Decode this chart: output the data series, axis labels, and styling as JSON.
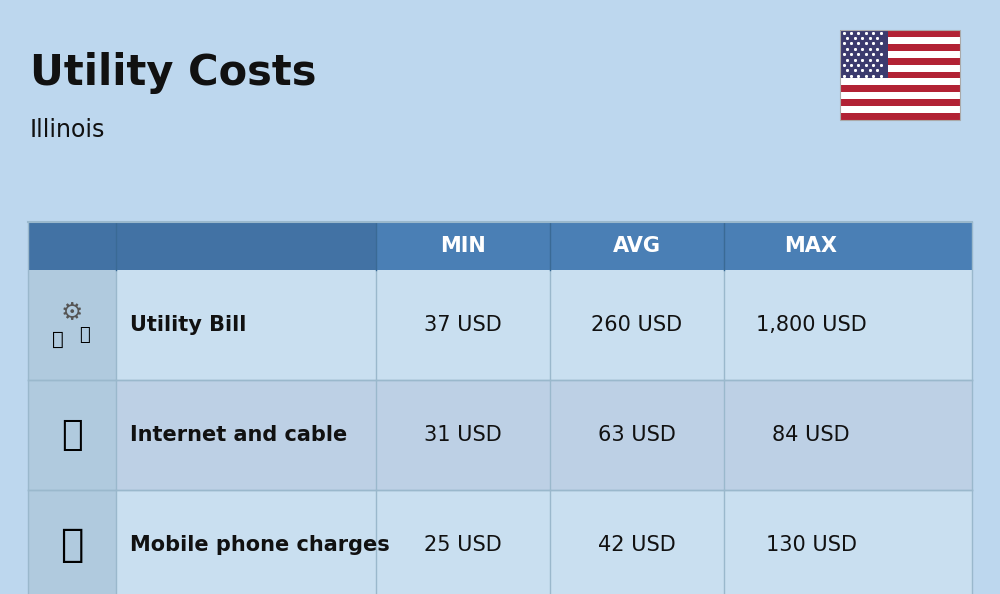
{
  "title": "Utility Costs",
  "subtitle": "Illinois",
  "background_color": "#bdd7ee",
  "header_bg_color": "#4a7fb5",
  "header_text_color": "#ffffff",
  "row_bg_color_1": "#c9dff0",
  "row_bg_color_2": "#bdd0e5",
  "icon_col_bg": "#b8cfe0",
  "text_color": "#111111",
  "divider_color": "#9ab8cc",
  "rows": [
    {
      "label": "Utility Bill",
      "min": "37 USD",
      "avg": "260 USD",
      "max": "1,800 USD",
      "icon": "utility"
    },
    {
      "label": "Internet and cable",
      "min": "31 USD",
      "avg": "63 USD",
      "max": "84 USD",
      "icon": "internet"
    },
    {
      "label": "Mobile phone charges",
      "min": "25 USD",
      "avg": "42 USD",
      "max": "130 USD",
      "icon": "mobile"
    }
  ],
  "title_fontsize": 30,
  "subtitle_fontsize": 17,
  "header_fontsize": 15,
  "cell_fontsize": 15,
  "label_fontsize": 15,
  "flag_stripe_red": "#B22234",
  "flag_stripe_white": "#ffffff",
  "flag_canton_blue": "#3C3B6E"
}
